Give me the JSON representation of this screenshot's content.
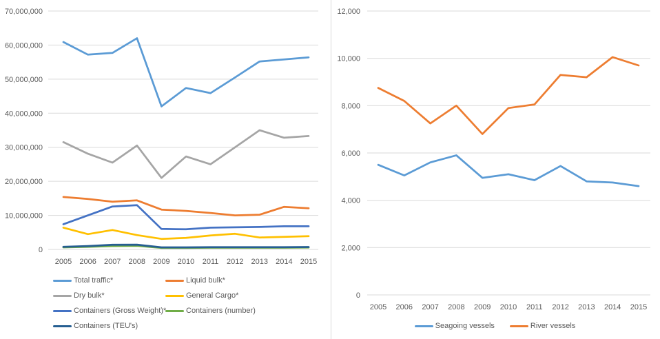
{
  "colors": {
    "background": "#FFFFFF",
    "gridline": "#D9D9D9",
    "axis_text": "#595959",
    "divider": "#D9D9D9"
  },
  "chart_data": [
    {
      "id": "cargo-traffic-chart",
      "type": "line",
      "grid": true,
      "legend_position": "bottom-left-two-columns",
      "categories": [
        "2005",
        "2006",
        "2007",
        "2008",
        "2009",
        "2010",
        "2011",
        "2012",
        "2013",
        "2014",
        "2015"
      ],
      "ylim": [
        0,
        70000000
      ],
      "ytick_interval": 10000000,
      "ytick_labels": [
        "0",
        "10,000,000",
        "20,000,000",
        "30,000,000",
        "40,000,000",
        "50,000,000",
        "60,000,000",
        "70,000,000"
      ],
      "series": [
        {
          "name": "Total traffic*",
          "color": "#5B9BD5",
          "values": [
            60900000,
            57200000,
            57700000,
            62000000,
            42000000,
            47400000,
            45900000,
            50500000,
            55200000,
            55800000,
            56400000
          ]
        },
        {
          "name": "Liquid bulk*",
          "color": "#ED7D31",
          "values": [
            15400000,
            14800000,
            14000000,
            14400000,
            11700000,
            11300000,
            10700000,
            10000000,
            10200000,
            12500000,
            12100000
          ]
        },
        {
          "name": "Dry bulk*",
          "color": "#A5A5A5",
          "values": [
            31500000,
            28100000,
            25500000,
            30500000,
            21000000,
            27300000,
            25000000,
            30000000,
            35000000,
            32800000,
            33300000
          ]
        },
        {
          "name": "General Cargo*",
          "color": "#FFC000",
          "values": [
            6400000,
            4500000,
            5700000,
            4200000,
            3100000,
            3400000,
            4100000,
            4600000,
            3500000,
            3700000,
            3900000
          ]
        },
        {
          "name": "Containers (Gross Weight)*",
          "color": "#4472C4",
          "values": [
            7400000,
            10000000,
            12600000,
            13000000,
            6000000,
            5900000,
            6400000,
            6500000,
            6600000,
            6800000,
            6800000
          ]
        },
        {
          "name": "Containers (number)",
          "color": "#70AD47",
          "values": [
            600000,
            750000,
            1000000,
            1050000,
            450000,
            450000,
            500000,
            500000,
            500000,
            500000,
            550000
          ]
        },
        {
          "name": "Containers (TEU's)",
          "color": "#255E91",
          "values": [
            750000,
            1000000,
            1350000,
            1400000,
            600000,
            600000,
            650000,
            650000,
            650000,
            650000,
            700000
          ]
        }
      ]
    },
    {
      "id": "vessel-traffic-chart",
      "type": "line",
      "grid": true,
      "legend_position": "bottom-center",
      "categories": [
        "2005",
        "2006",
        "2007",
        "2008",
        "2009",
        "2010",
        "2011",
        "2012",
        "2013",
        "2014",
        "2015"
      ],
      "ylim": [
        0,
        12000
      ],
      "ytick_interval": 2000,
      "ytick_labels": [
        "0",
        "2,000",
        "4,000",
        "6,000",
        "8,000",
        "10,000",
        "12,000"
      ],
      "series": [
        {
          "name": "Seagoing vessels",
          "color": "#5B9BD5",
          "values": [
            5500,
            5050,
            5600,
            5900,
            4950,
            5100,
            4850,
            5450,
            4800,
            4750,
            4600
          ]
        },
        {
          "name": "River vessels",
          "color": "#ED7D31",
          "values": [
            8750,
            8200,
            7250,
            8000,
            6800,
            7900,
            8050,
            9300,
            9200,
            10050,
            9700
          ]
        }
      ]
    }
  ]
}
